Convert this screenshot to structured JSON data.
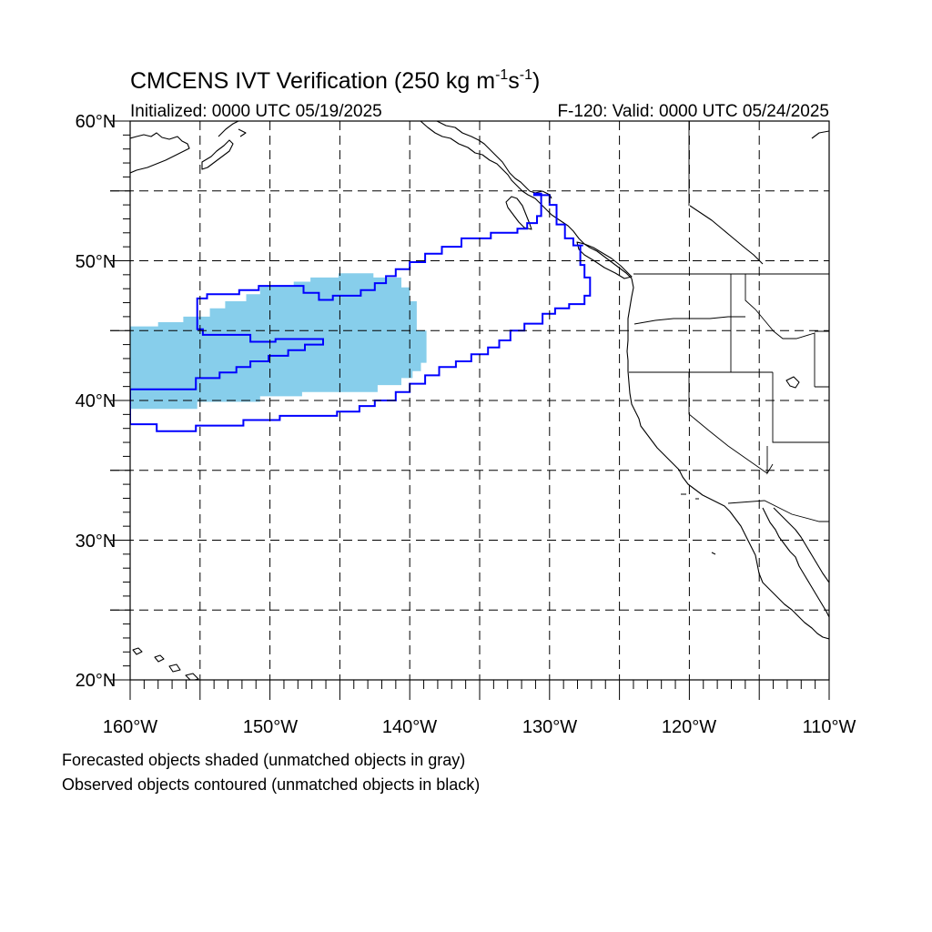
{
  "title": {
    "main": "CMCENS IVT Verification (250 kg m",
    "sup1": "-1",
    "mid": "s",
    "sup2": "-1",
    "end": ")"
  },
  "init_label": "Initialized: 0000 UTC 05/19/2025",
  "valid_label": "F-120: Valid: 0000 UTC 05/24/2025",
  "lat_labels": [
    "60°N",
    "50°N",
    "40°N",
    "30°N",
    "20°N"
  ],
  "lon_labels": [
    "160°W",
    "150°W",
    "140°W",
    "130°W",
    "120°W",
    "110°W"
  ],
  "caption_line1": "Forecasted objects shaded (unmatched objects in gray)",
  "caption_line2": "Observed objects contoured (unmatched objects in black)",
  "colors": {
    "forecast_fill": "#87ceeb",
    "observed_contour": "#0000ff",
    "coastline": "#000000"
  },
  "map_extent": {
    "lon_min": -160,
    "lon_max": -110,
    "lat_min": 20,
    "lat_max": 60
  },
  "forecast_object": {
    "description_type": "shaded",
    "polygon": [
      [
        -160,
        39.4
      ],
      [
        -155.2,
        39.4
      ],
      [
        -155.2,
        39.9
      ],
      [
        -150.7,
        39.9
      ],
      [
        -150.7,
        40.3
      ],
      [
        -147.7,
        40.3
      ],
      [
        -147.7,
        40.6
      ],
      [
        -142.3,
        40.6
      ],
      [
        -142.3,
        41.1
      ],
      [
        -140.6,
        41.1
      ],
      [
        -140.6,
        41.6
      ],
      [
        -139.8,
        41.6
      ],
      [
        -139.8,
        42.1
      ],
      [
        -139.2,
        42.1
      ],
      [
        -139.2,
        42.7
      ],
      [
        -138.8,
        42.7
      ],
      [
        -138.8,
        45.0
      ],
      [
        -139.5,
        45.0
      ],
      [
        -139.5,
        47.1
      ],
      [
        -140.0,
        47.1
      ],
      [
        -140.0,
        48.1
      ],
      [
        -140.6,
        48.1
      ],
      [
        -140.6,
        48.8
      ],
      [
        -142.6,
        48.8
      ],
      [
        -142.6,
        49.1
      ],
      [
        -145.1,
        49.1
      ],
      [
        -145.1,
        48.8
      ],
      [
        -147.1,
        48.8
      ],
      [
        -147.1,
        48.5
      ],
      [
        -148.3,
        48.5
      ],
      [
        -148.3,
        48.2
      ],
      [
        -150.7,
        48.2
      ],
      [
        -150.7,
        47.6
      ],
      [
        -151.7,
        47.6
      ],
      [
        -151.7,
        47.1
      ],
      [
        -153.2,
        47.1
      ],
      [
        -153.2,
        46.6
      ],
      [
        -154.3,
        46.6
      ],
      [
        -154.3,
        46.0
      ],
      [
        -156.2,
        46.0
      ],
      [
        -156.2,
        45.6
      ],
      [
        -158.0,
        45.6
      ],
      [
        -158.0,
        45.3
      ],
      [
        -160,
        45.3
      ]
    ]
  },
  "observed_objects": [
    {
      "name": "outer",
      "polygon": [
        [
          -160,
          38.3
        ],
        [
          -158.1,
          38.3
        ],
        [
          -158.1,
          37.8
        ],
        [
          -155.3,
          37.8
        ],
        [
          -155.3,
          38.2
        ],
        [
          -151.9,
          38.2
        ],
        [
          -151.9,
          38.6
        ],
        [
          -149.3,
          38.6
        ],
        [
          -149.3,
          38.9
        ],
        [
          -145.2,
          38.9
        ],
        [
          -145.2,
          39.2
        ],
        [
          -143.6,
          39.2
        ],
        [
          -143.6,
          39.6
        ],
        [
          -142.5,
          39.6
        ],
        [
          -142.5,
          40.0
        ],
        [
          -141.0,
          40.0
        ],
        [
          -141.0,
          40.6
        ],
        [
          -140.0,
          40.6
        ],
        [
          -140.0,
          41.2
        ],
        [
          -138.9,
          41.2
        ],
        [
          -138.9,
          41.8
        ],
        [
          -137.9,
          41.8
        ],
        [
          -137.9,
          42.4
        ],
        [
          -136.7,
          42.4
        ],
        [
          -136.7,
          42.8
        ],
        [
          -135.6,
          42.8
        ],
        [
          -135.6,
          43.3
        ],
        [
          -134.4,
          43.3
        ],
        [
          -134.4,
          43.8
        ],
        [
          -133.6,
          43.8
        ],
        [
          -133.6,
          44.3
        ],
        [
          -132.8,
          44.3
        ],
        [
          -132.8,
          45.0
        ],
        [
          -131.8,
          45.0
        ],
        [
          -131.8,
          45.5
        ],
        [
          -130.5,
          45.5
        ],
        [
          -130.5,
          46.2
        ],
        [
          -129.6,
          46.2
        ],
        [
          -129.6,
          46.6
        ],
        [
          -128.6,
          46.6
        ],
        [
          -128.6,
          46.9
        ],
        [
          -127.5,
          46.9
        ],
        [
          -127.5,
          47.5
        ],
        [
          -127.1,
          47.5
        ],
        [
          -127.1,
          48.8
        ],
        [
          -127.5,
          48.8
        ],
        [
          -127.5,
          49.7
        ],
        [
          -127.8,
          49.7
        ],
        [
          -127.8,
          51.1
        ],
        [
          -127.6,
          51.1
        ],
        [
          -128.3,
          51.1
        ],
        [
          -128.3,
          51.6
        ],
        [
          -128.9,
          51.6
        ],
        [
          -128.9,
          52.6
        ],
        [
          -129.5,
          52.6
        ],
        [
          -129.5,
          54.0
        ],
        [
          -130.0,
          54.0
        ],
        [
          -130.0,
          54.7
        ],
        [
          -131.1,
          54.7
        ],
        [
          -131.1,
          54.8
        ],
        [
          -130.6,
          54.8
        ],
        [
          -130.6,
          53.2
        ],
        [
          -130.9,
          53.2
        ],
        [
          -130.9,
          52.7
        ],
        [
          -131.6,
          52.7
        ],
        [
          -131.6,
          52.3
        ],
        [
          -132.3,
          52.3
        ],
        [
          -132.3,
          52.0
        ],
        [
          -134.2,
          52.0
        ],
        [
          -134.2,
          51.6
        ],
        [
          -136.3,
          51.6
        ],
        [
          -136.3,
          51.0
        ],
        [
          -137.7,
          51.0
        ],
        [
          -137.7,
          50.5
        ],
        [
          -138.9,
          50.5
        ],
        [
          -138.9,
          49.9
        ],
        [
          -140.0,
          49.9
        ],
        [
          -140.0,
          49.4
        ],
        [
          -141.0,
          49.4
        ],
        [
          -141.0,
          48.9
        ],
        [
          -141.7,
          48.9
        ],
        [
          -141.7,
          48.4
        ],
        [
          -142.5,
          48.4
        ],
        [
          -142.5,
          47.9
        ],
        [
          -143.5,
          47.9
        ],
        [
          -143.5,
          47.5
        ],
        [
          -145.5,
          47.5
        ],
        [
          -145.5,
          47.2
        ],
        [
          -146.5,
          47.2
        ],
        [
          -146.5,
          47.7
        ],
        [
          -147.6,
          47.7
        ],
        [
          -147.6,
          48.2
        ],
        [
          -150.8,
          48.2
        ],
        [
          -150.8,
          47.9
        ],
        [
          -152.2,
          47.9
        ],
        [
          -152.2,
          47.6
        ],
        [
          -154.5,
          47.6
        ],
        [
          -154.5,
          47.3
        ],
        [
          -155.2,
          47.3
        ],
        [
          -155.2,
          45.1
        ],
        [
          -154.8,
          45.1
        ],
        [
          -154.8,
          44.7
        ],
        [
          -151.4,
          44.7
        ],
        [
          -151.4,
          44.2
        ],
        [
          -149.6,
          44.2
        ],
        [
          -149.6,
          44.4
        ],
        [
          -146.2,
          44.4
        ],
        [
          -146.2,
          44.0
        ],
        [
          -147.5,
          44.0
        ],
        [
          -147.5,
          43.6
        ],
        [
          -148.7,
          43.6
        ],
        [
          -148.7,
          43.2
        ],
        [
          -150.1,
          43.2
        ],
        [
          -150.1,
          42.8
        ],
        [
          -151.4,
          42.8
        ],
        [
          -151.4,
          42.4
        ],
        [
          -152.4,
          42.4
        ],
        [
          -152.4,
          42.0
        ],
        [
          -153.6,
          42.0
        ],
        [
          -153.6,
          41.6
        ],
        [
          -155.3,
          41.6
        ],
        [
          -155.3,
          40.8
        ],
        [
          -160,
          40.8
        ]
      ]
    }
  ]
}
